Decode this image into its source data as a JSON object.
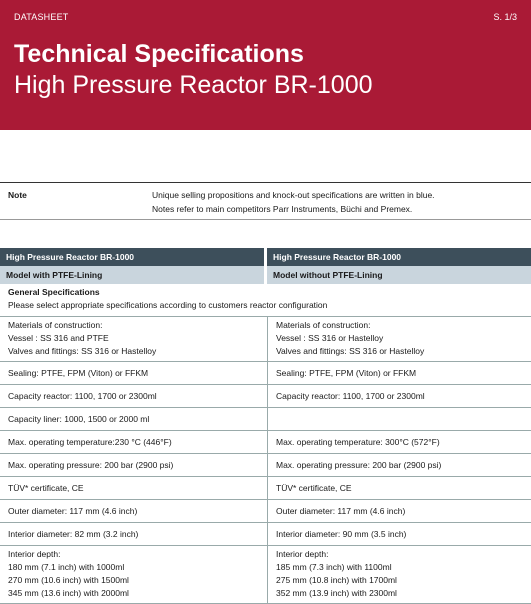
{
  "header": {
    "doc_type": "DATASHEET",
    "page": "S. 1/3",
    "title_line1": "Technical Specifications",
    "title_line2": "High Pressure Reactor BR-1000",
    "banner_color": "#aa1a36"
  },
  "note": {
    "label": "Note",
    "line1": "Unique selling propositions and knock-out specifications are written in blue.",
    "line2": "Notes refer to main competitors Parr Instruments, Büchi and Premex."
  },
  "table": {
    "left_header": "High Pressure Reactor BR-1000",
    "right_header": "High Pressure Reactor BR-1000",
    "left_model": "Model with PTFE-Lining",
    "right_model": "Model without PTFE-Lining",
    "general_title": "General Specifications",
    "general_text": "Please select appropriate specifications according to customers reactor configuration",
    "rows": [
      {
        "left": [
          "Materials of construction:",
          "Vessel  :  SS 316 and PTFE",
          "Valves and fittings: SS 316 or Hastelloy"
        ],
        "right": [
          "Materials of construction:",
          "Vessel  :  SS 316 or Hastelloy",
          "Valves and fittings: SS 316 or Hastelloy"
        ]
      },
      {
        "left": [
          "Sealing: PTFE, FPM (Viton) or FFKM"
        ],
        "right": [
          "Sealing: PTFE, FPM (Viton) or FFKM"
        ]
      },
      {
        "left": [
          "Capacity reactor: 1100, 1700 or 2300ml"
        ],
        "right": [
          "Capacity reactor: 1100, 1700 or 2300ml"
        ]
      },
      {
        "left": [
          "Capacity liner: 1000, 1500 or 2000 ml"
        ],
        "right": [
          ""
        ]
      },
      {
        "left": [
          "Max. operating temperature:230 °C (446°F)"
        ],
        "right": [
          "Max. operating temperature: 300°C (572°F)"
        ]
      },
      {
        "left": [
          "Max. operating pressure: 200 bar (2900 psi)"
        ],
        "right": [
          "Max. operating pressure: 200 bar (2900 psi)"
        ]
      },
      {
        "left": [
          "TÜV* certificate, CE"
        ],
        "right": [
          "TÜV* certificate, CE"
        ]
      },
      {
        "left": [
          "Outer diameter: 117 mm (4.6 inch)"
        ],
        "right": [
          "Outer diameter: 117 mm (4.6 inch)"
        ]
      },
      {
        "left": [
          "Interior diameter: 82 mm (3.2 inch)"
        ],
        "right": [
          "Interior diameter: 90 mm (3.5 inch)"
        ]
      },
      {
        "left": [
          "Interior depth:",
          "180 mm (7.1 inch) with 1000ml",
          "270 mm (10.6 inch) with 1500ml",
          "345 mm (13.6 inch) with 2000ml"
        ],
        "right": [
          "Interior depth:",
          "185 mm (7.3 inch) with 1100ml",
          "275 mm (10.8 inch) with 1700ml",
          "352 mm (13.9 inch) with 2300ml"
        ]
      }
    ]
  }
}
